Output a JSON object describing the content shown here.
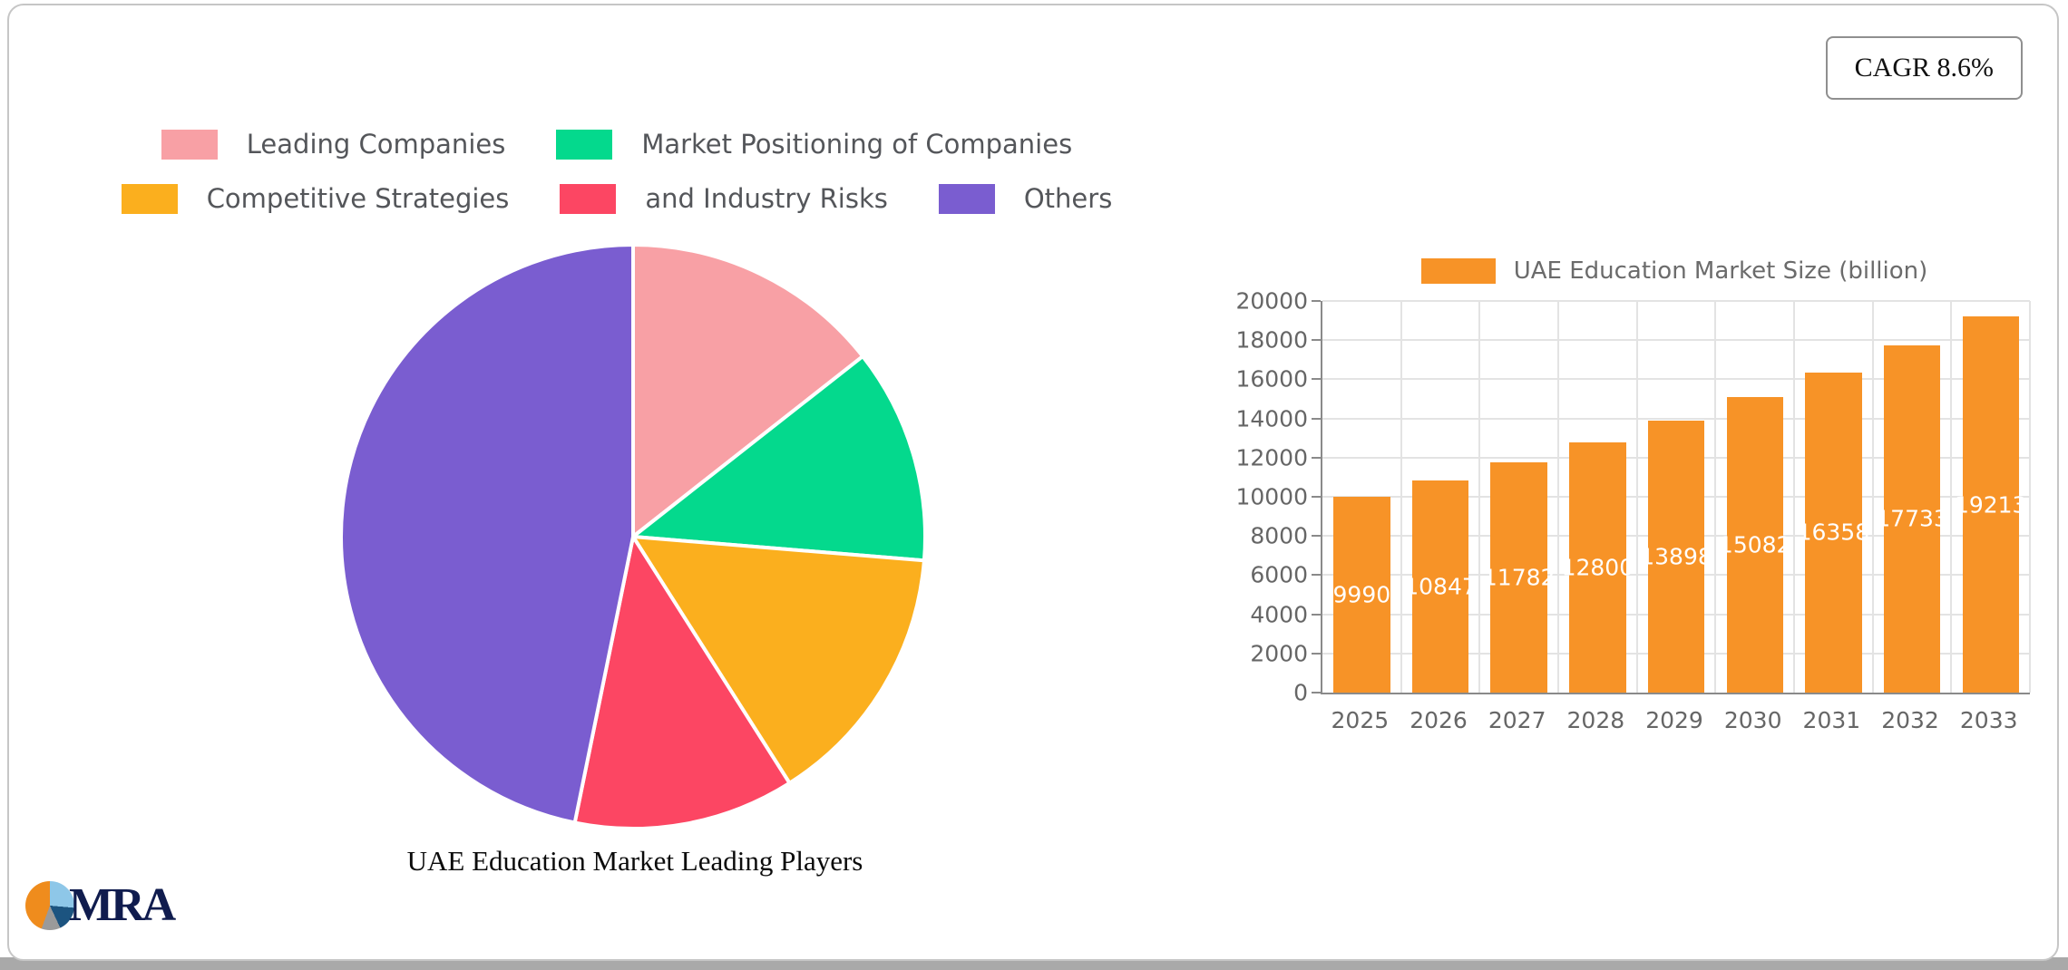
{
  "page": {
    "cagr_badge": "CAGR 8.6%"
  },
  "logo": {
    "text": "MRA",
    "pie_colors": [
      "#8ec7e8",
      "#1c5480",
      "#9a9a9a",
      "#ef8c1d"
    ],
    "pie_stops_deg": [
      15,
      95,
      155,
      200,
      375
    ]
  },
  "chart_data": [
    {
      "type": "pie",
      "title": "UAE Education Market Leading Players",
      "labels": [
        "Leading Companies",
        "Market Positioning of Companies",
        "Competitive Strategies",
        "and Industry Risks",
        "Others"
      ],
      "values": [
        14.4,
        11.9,
        14.7,
        12.2,
        46.8
      ],
      "colors": [
        "#f8a0a5",
        "#04d98d",
        "#fbaf1e",
        "#fc4663",
        "#7a5dd0"
      ],
      "legend_rows": [
        [
          0,
          1
        ],
        [
          2,
          3,
          4
        ]
      ],
      "legend_position": "top",
      "start_angle_deg": 0,
      "direction": "clockwise"
    },
    {
      "type": "bar",
      "legend": "UAE Education Market Size (billion)",
      "categories": [
        "2025",
        "2026",
        "2027",
        "2028",
        "2029",
        "2030",
        "2031",
        "2032",
        "2033"
      ],
      "values": [
        9990,
        10847,
        11782,
        12800,
        13898,
        15082,
        16358,
        17733,
        19213
      ],
      "bar_color": "#f79327",
      "value_label_color": "#ffffff",
      "ylim": [
        0,
        20000
      ],
      "ytick_step": 2000,
      "grid": true,
      "legend_position": "top"
    }
  ]
}
